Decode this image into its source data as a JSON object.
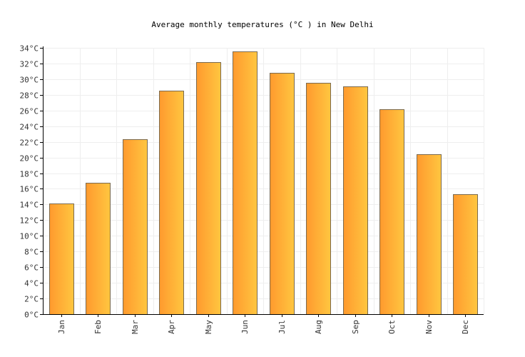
{
  "chart_data": {
    "type": "bar",
    "title": "Average monthly temperatures (°C ) in New Delhi",
    "xlabel": "",
    "ylabel": "",
    "categories": [
      "Jan",
      "Feb",
      "Mar",
      "Apr",
      "May",
      "Jun",
      "Jul",
      "Aug",
      "Sep",
      "Oct",
      "Nov",
      "Dec"
    ],
    "values": [
      14.1,
      16.8,
      22.3,
      28.5,
      32.2,
      33.5,
      30.8,
      29.5,
      29.1,
      26.2,
      20.4,
      15.3
    ],
    "ylim": [
      0,
      34
    ],
    "ytick_step": 2,
    "ytick_suffix": "°C",
    "grid": true,
    "legend": "none",
    "colors": {
      "bar_left": "#ff9a2e",
      "bar_right": "#ffc640",
      "bar_stroke": "#7a6a4f",
      "grid": "#eeeeee",
      "axis": "#000000"
    }
  }
}
